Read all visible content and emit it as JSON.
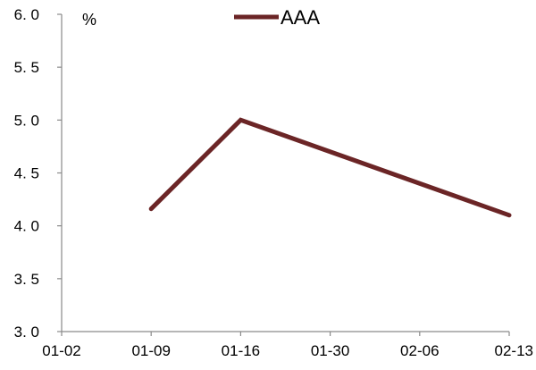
{
  "chart_data": {
    "type": "line",
    "title": "",
    "xlabel": "",
    "ylabel": "",
    "unit_label": "%",
    "categories": [
      "01-02",
      "01-09",
      "01-16",
      "01-30",
      "02-06",
      "02-13"
    ],
    "series": [
      {
        "name": "AAA",
        "color": "#6b2526",
        "values": [
          null,
          4.16,
          5.0,
          null,
          null,
          4.1
        ]
      }
    ],
    "yticks": [
      "6. 0",
      "5. 5",
      "5. 0",
      "4. 5",
      "4. 0",
      "3. 5",
      "3. 0"
    ],
    "ylim": [
      3.0,
      6.0
    ],
    "grid": false,
    "legend_position": "top-center"
  }
}
